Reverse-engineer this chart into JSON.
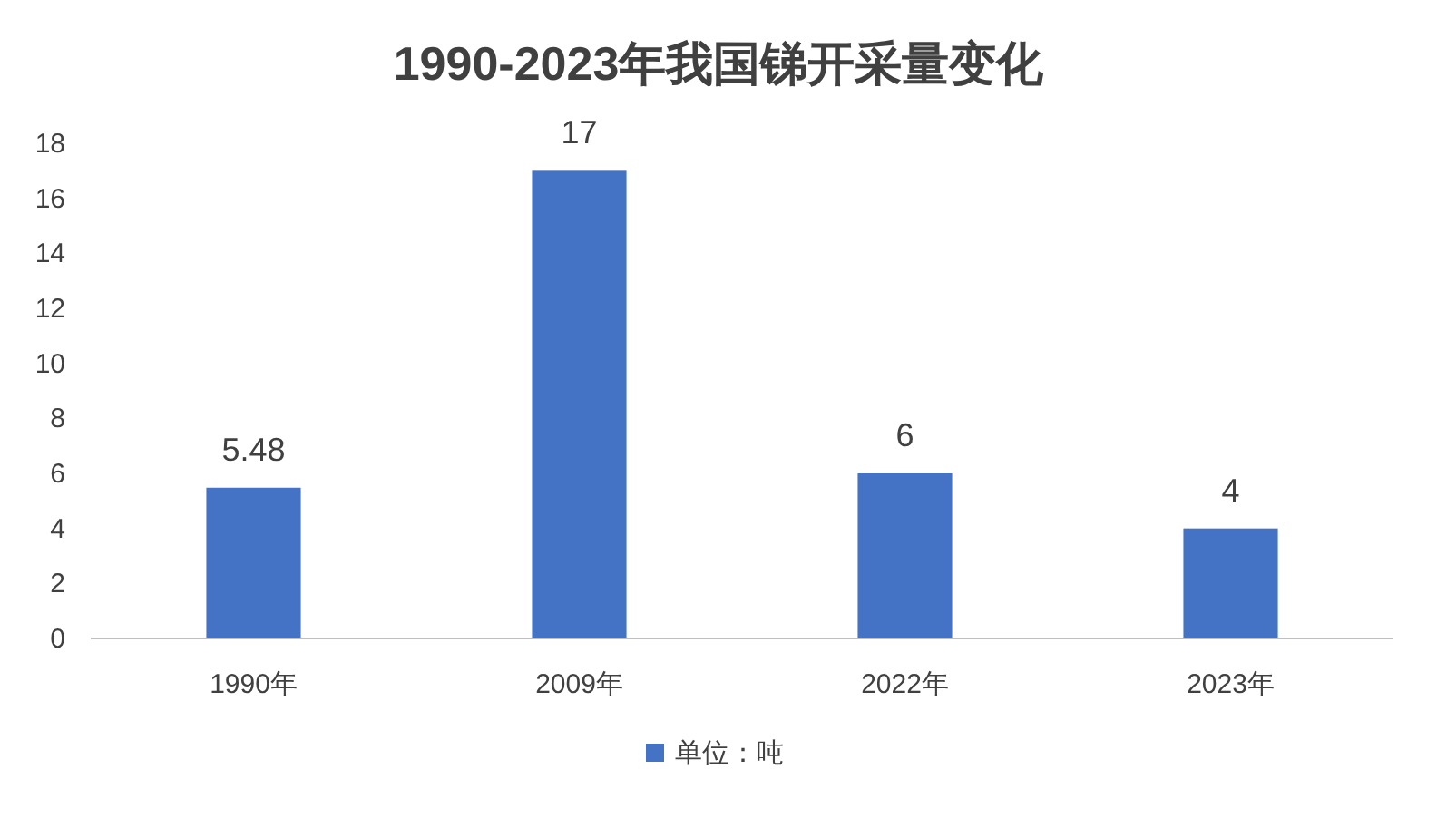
{
  "chart_data": {
    "type": "bar",
    "title": "1990-2023年我国锑开采量变化",
    "categories": [
      "1990年",
      "2009年",
      "2022年",
      "2023年"
    ],
    "series": [
      {
        "name": "单位：吨",
        "color": "#4472c4",
        "values": [
          5.48,
          17,
          6,
          4
        ]
      }
    ],
    "ylim": [
      0,
      18
    ],
    "yticks": [
      0,
      2,
      4,
      6,
      8,
      10,
      12,
      14,
      16,
      18
    ],
    "data_labels": true,
    "legend": "bottom"
  }
}
